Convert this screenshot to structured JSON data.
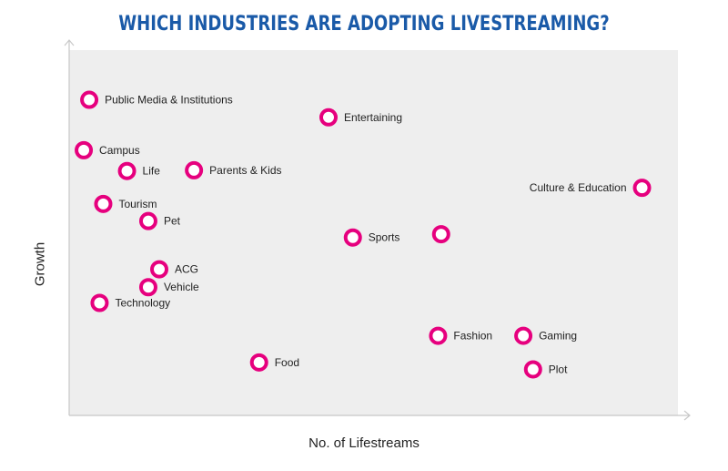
{
  "chart_data": {
    "type": "scatter",
    "title": "WHICH INDUSTRIES ARE ADOPTING LIVESTREAMING?",
    "xlabel": "No. of Lifestreams",
    "ylabel": "Growth",
    "grid": false,
    "marker_color": "#e6007e",
    "plot_background": "#eeeeee",
    "points": [
      {
        "label": "Public Media & Institutions",
        "x": 3.3,
        "y": 86.4
      },
      {
        "label": "Entertaining",
        "x": 42.6,
        "y": 81.6
      },
      {
        "label": "Campus",
        "x": 2.4,
        "y": 72.6
      },
      {
        "label": "Life",
        "x": 9.5,
        "y": 66.9
      },
      {
        "label": "Parents & Kids",
        "x": 20.5,
        "y": 67.1
      },
      {
        "label": "Culture & Education",
        "x": 94.1,
        "y": 62.3
      },
      {
        "label": "Tourism",
        "x": 5.6,
        "y": 57.9
      },
      {
        "label": "Pet",
        "x": 13.0,
        "y": 53.2
      },
      {
        "label": "Sports",
        "x": 46.6,
        "y": 48.7
      },
      {
        "label": "",
        "x": 61.1,
        "y": 49.6
      },
      {
        "label": "ACG",
        "x": 14.8,
        "y": 40.0
      },
      {
        "label": "Vehicle",
        "x": 13.0,
        "y": 35.1
      },
      {
        "label": "Technology",
        "x": 5.0,
        "y": 30.8
      },
      {
        "label": "Fashion",
        "x": 60.6,
        "y": 21.8
      },
      {
        "label": "Gaming",
        "x": 74.6,
        "y": 21.8
      },
      {
        "label": "Food",
        "x": 31.2,
        "y": 14.5
      },
      {
        "label": "Plot",
        "x": 76.2,
        "y": 12.6
      }
    ]
  }
}
